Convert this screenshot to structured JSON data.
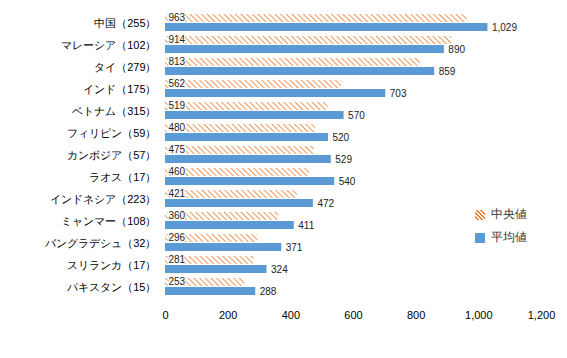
{
  "chart_data": {
    "type": "bar",
    "orientation": "horizontal",
    "categories": [
      "中国（255）",
      "マレーシア（102）",
      "タイ（279）",
      "インド（175）",
      "ベトナム（315）",
      "フィリピン（59）",
      "カンボジア（57）",
      "ラオス（17）",
      "インドネシア（223）",
      "ミャンマー（108）",
      "バングラデシュ（32）",
      "スリランカ（17）",
      "パキスタン（15）"
    ],
    "series": [
      {
        "name": "中央値",
        "color": "#ED7D31",
        "values": [
          963,
          914,
          813,
          562,
          519,
          480,
          475,
          460,
          421,
          360,
          296,
          281,
          253
        ]
      },
      {
        "name": "平均値",
        "color": "#5B9BD5",
        "values": [
          1029,
          890,
          859,
          703,
          570,
          520,
          529,
          540,
          472,
          411,
          371,
          324,
          288
        ],
        "value_labels": [
          "1,029",
          "890",
          "859",
          "703",
          "570",
          "520",
          "529",
          "540",
          "472",
          "411",
          "371",
          "324",
          "288"
        ]
      }
    ],
    "xlim": [
      0,
      1200
    ],
    "xticks": [
      0,
      200,
      400,
      600,
      800,
      {
        "value": 1000,
        "label": "1,000"
      },
      {
        "value": 1200,
        "label": "1,200"
      }
    ],
    "data_labels": true,
    "legend": "right",
    "grid": false
  }
}
